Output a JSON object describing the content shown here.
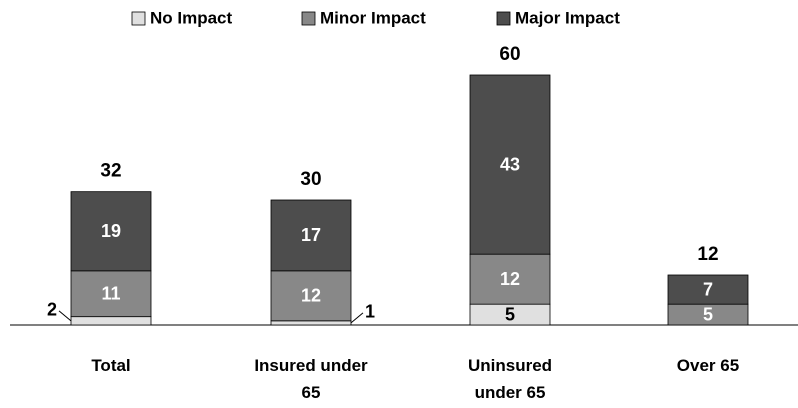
{
  "chart_data": {
    "type": "stacked_bar",
    "categories": [
      "Total",
      "Insured under 65",
      "Uninsured under 65",
      "Over 65"
    ],
    "series": [
      {
        "name": "No Impact",
        "color": "#e0e0e0",
        "values": [
          2,
          1,
          5,
          null
        ]
      },
      {
        "name": "Minor Impact",
        "color": "#888888",
        "values": [
          11,
          12,
          12,
          5
        ]
      },
      {
        "name": "Major Impact",
        "color": "#4d4d4d",
        "values": [
          19,
          17,
          43,
          7
        ]
      }
    ],
    "totals": [
      32,
      30,
      60,
      12
    ]
  }
}
